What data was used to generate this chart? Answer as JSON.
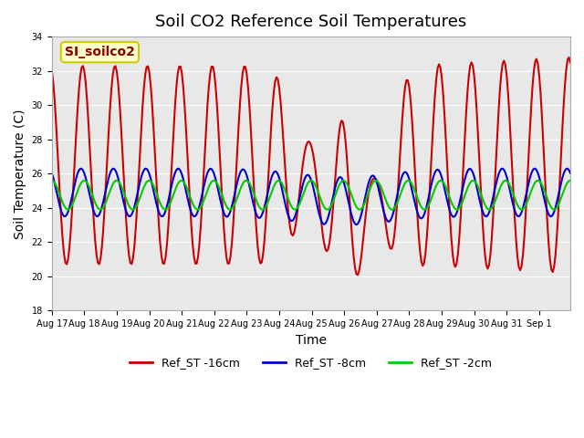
{
  "title": "Soil CO2 Reference Soil Temperatures",
  "xlabel": "Time",
  "ylabel": "Soil Temperature (C)",
  "ylim": [
    18,
    34
  ],
  "yticks": [
    18,
    20,
    22,
    24,
    26,
    28,
    30,
    32,
    34
  ],
  "legend_label": "SI_soilco2",
  "series_names": [
    "Ref_ST -16cm",
    "Ref_ST -8cm",
    "Ref_ST -2cm"
  ],
  "series_colors": [
    "#cc0000",
    "#0000cc",
    "#00cc00"
  ],
  "series_linewidths": [
    1.5,
    1.5,
    1.5
  ],
  "background_color": "#e8e8e8",
  "x_tick_dates": [
    "Aug 17",
    "Aug 18",
    "Aug 19",
    "Aug 20",
    "Aug 21",
    "Aug 22",
    "Aug 23",
    "Aug 24",
    "Aug 25",
    "Aug 26",
    "Aug 27",
    "Aug 28",
    "Aug 29",
    "Aug 30",
    "Aug 31",
    "Sep 1"
  ],
  "title_fontsize": 13,
  "axis_label_fontsize": 10,
  "tick_fontsize": 7,
  "annotation_fontsize": 10,
  "annotation_color": "#8b0000",
  "annotation_bg": "#ffffcc",
  "annotation_edge": "#cccc00",
  "legend_fontsize": 9,
  "n_days": 16,
  "pts_per_day": 24
}
